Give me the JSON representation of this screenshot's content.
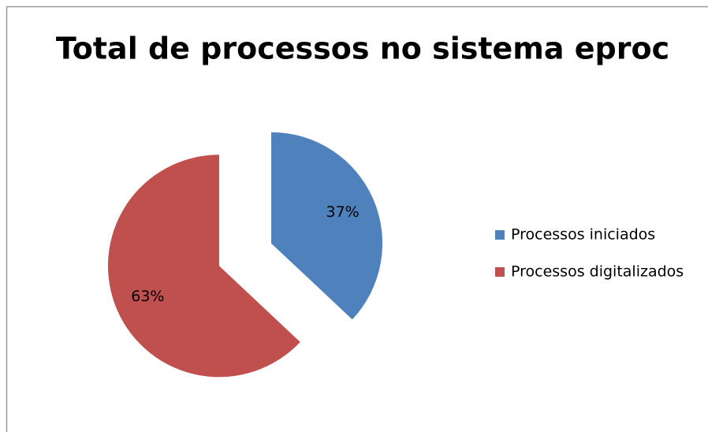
{
  "chart_data": {
    "type": "pie",
    "title": "Total de processos no sistema eproc",
    "categories": [
      "Processos iniciados",
      "Processos digitalizados"
    ],
    "values": [
      37,
      63
    ],
    "value_labels": [
      "37%",
      "63%"
    ],
    "colors": [
      "#4f81bd",
      "#c0504d"
    ],
    "exploded": true,
    "legend": "right"
  }
}
